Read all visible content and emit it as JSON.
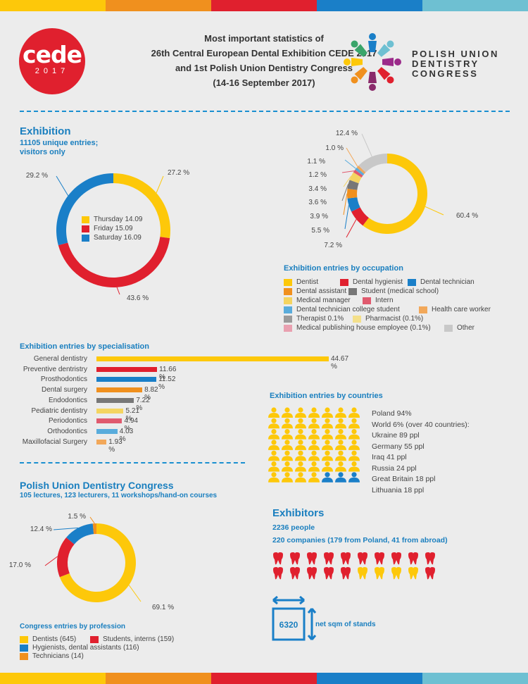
{
  "colors": {
    "yellow": "#fdc80a",
    "red": "#e0202e",
    "blue": "#1a7fc8",
    "orange": "#f0901e",
    "gray": "#777777",
    "lightyellow": "#f4d460",
    "pink": "#e05a6e",
    "lightblue": "#59acdc",
    "peach": "#f2a85a",
    "silver": "#9a9a9a",
    "cream": "#f4e08a",
    "rose": "#e9a0b0",
    "lightgray": "#c8c8c8",
    "sectionBlue": "#1a7fbf",
    "stripe": [
      "#fdc80a",
      "#f0901e",
      "#e0202e",
      "#1a7fc8",
      "#6ec0d2"
    ]
  },
  "header": {
    "title_lines": [
      "Most important statistics of",
      "26th Central European Dental Exhibition CEDE 2017",
      "and 1st Polish Union Dentistry Congress",
      "(14-16 September 2017)"
    ],
    "cede_logo_word": "cede",
    "cede_logo_year": "2017",
    "pudc_lines": [
      "POLISH UNION",
      "DENTISTRY",
      "CONGRESS"
    ]
  },
  "exhibition": {
    "title": "Exhibition",
    "subtitle_lines": [
      "11105 unique entries;",
      "visitors only"
    ]
  },
  "chart_data": [
    {
      "type": "pie",
      "id": "visitors_by_day",
      "categories": [
        "Thursday 14.09",
        "Friday 15.09",
        "Saturday 16.09"
      ],
      "values": [
        27.2,
        43.6,
        29.2
      ],
      "value_labels": [
        "27.2 %",
        "43.6 %",
        "29.2 %"
      ],
      "colors": [
        "#fdc80a",
        "#e0202e",
        "#1a7fc8"
      ],
      "legend": "center"
    },
    {
      "type": "pie",
      "id": "entries_by_occupation",
      "title": "Exhibition entries by occupation",
      "categories": [
        "Dentist",
        "Dental hygienist",
        "Dental technician",
        "Dental assistant",
        "Student (medical school)",
        "Medical manager",
        "Intern",
        "Dental technician college student",
        "Health care worker",
        "Therapist 0.1%",
        "Pharmacist (0.1%)",
        "Medical publishing house employee (0.1%)",
        "Other"
      ],
      "values": [
        60.4,
        7.2,
        5.5,
        3.9,
        3.6,
        3.4,
        1.2,
        1.1,
        1.0,
        0.1,
        0.1,
        0.1,
        12.4
      ],
      "value_labels": [
        "60.4 %",
        "7.2 %",
        "5.5 %",
        "3.9 %",
        "3.6 %",
        "3.4 %",
        "1.2 %",
        "1.1 %",
        "1.0 %",
        "",
        "",
        "",
        "12.4 %"
      ],
      "colors": [
        "#fdc80a",
        "#e0202e",
        "#1a7fc8",
        "#f0901e",
        "#777777",
        "#f4d460",
        "#e05a6e",
        "#59acdc",
        "#f2a85a",
        "#9a9a9a",
        "#f4e08a",
        "#e9a0b0",
        "#c8c8c8"
      ],
      "legend": "bottom"
    },
    {
      "type": "bar",
      "id": "entries_by_specialisation",
      "orientation": "horizontal",
      "title": "Exhibition entries by specialisation",
      "categories": [
        "General dentistry",
        "Preventive dentristry",
        "Prosthodontics",
        "Dental surgery",
        "Endodontics",
        "Pediatric dentistry",
        "Periodontics",
        "Orthodontics",
        "Maxillofacial Surgery"
      ],
      "values": [
        44.67,
        11.66,
        11.52,
        8.82,
        7.22,
        5.21,
        4.94,
        4.03,
        1.93
      ],
      "value_labels": [
        "44.67 %",
        "11.66 %",
        "11.52 %",
        "8.82 %",
        "7.22 %",
        "5.21 %",
        "4.94 %",
        "4.03 %",
        "1.93 %"
      ],
      "colors": [
        "#fdc80a",
        "#e0202e",
        "#1a7fc8",
        "#f0901e",
        "#777777",
        "#f4d460",
        "#e05a6e",
        "#59acdc",
        "#f2a85a"
      ]
    },
    {
      "type": "pie",
      "id": "congress_by_profession",
      "title": "Congress entries by profession",
      "categories": [
        "Dentists (645)",
        "Students, interns (159)",
        "Hygienists, dental assistants (116)",
        "Technicians (14)"
      ],
      "values": [
        69.1,
        17.0,
        12.4,
        1.5
      ],
      "value_labels": [
        "69.1 %",
        "17.0 %",
        "12.4 %",
        "1.5 %"
      ],
      "colors": [
        "#fdc80a",
        "#e0202e",
        "#1a7fc8",
        "#f0901e"
      ],
      "legend": "bottom"
    }
  ],
  "countries": {
    "title": "Exhibition entries by countries",
    "lines": [
      "Poland 94%",
      "World 6% (over 40 countries):",
      "Ukraine 89 ppl",
      "Germany 55 ppl",
      "Iraq 41 ppl",
      "Russia 24 ppl",
      "Great Britain 18 ppl",
      "Lithuania 18 ppl"
    ],
    "icons_total": 49,
    "icons_highlight": 3
  },
  "congress": {
    "title": "Polish Union Dentistry Congress",
    "subtitle": "105 lectures, 123 lecturers, 11 workshops/hand-on courses"
  },
  "exhibitors": {
    "title": "Exhibitors",
    "people": "2236 people",
    "companies": "220 companies (179 from Poland, 41 from abroad)",
    "teeth_total": 20,
    "teeth_yellow": 4,
    "stands_value": "6320",
    "stands_label": "net sqm of stands"
  }
}
